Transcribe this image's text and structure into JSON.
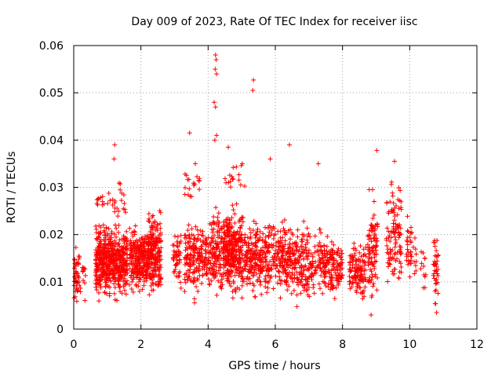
{
  "chart_data": {
    "type": "scatter",
    "title": "Day 009 of 2023, Rate Of TEC Index for receiver iisc",
    "xlabel": "GPS time / hours",
    "ylabel": "ROTI / TECUs",
    "xlim": [
      0,
      12
    ],
    "ylim": [
      0,
      0.06
    ],
    "x_ticks": [
      0,
      2,
      4,
      6,
      8,
      10,
      12
    ],
    "x_tick_labels": [
      "0",
      "2",
      "4",
      "6",
      "8",
      "10",
      "12"
    ],
    "y_ticks": [
      0,
      0.01,
      0.02,
      0.03,
      0.04,
      0.05,
      0.06
    ],
    "y_tick_labels": [
      "0",
      "0.01",
      "0.02",
      "0.03",
      "0.04",
      "0.05",
      "0.06"
    ],
    "grid": true,
    "marker": "plus",
    "color": "#ff0000",
    "series": [
      {
        "name": "ROTI",
        "notable_points": [
          {
            "x": 4.22,
            "y": 0.058
          },
          {
            "x": 4.24,
            "y": 0.057
          },
          {
            "x": 4.21,
            "y": 0.055
          },
          {
            "x": 4.25,
            "y": 0.054
          },
          {
            "x": 5.35,
            "y": 0.0527
          },
          {
            "x": 5.33,
            "y": 0.0505
          },
          {
            "x": 4.18,
            "y": 0.048
          },
          {
            "x": 4.22,
            "y": 0.047
          },
          {
            "x": 3.45,
            "y": 0.0415
          },
          {
            "x": 4.25,
            "y": 0.041
          },
          {
            "x": 4.2,
            "y": 0.04
          },
          {
            "x": 1.22,
            "y": 0.039
          },
          {
            "x": 6.42,
            "y": 0.039
          },
          {
            "x": 4.6,
            "y": 0.0385
          },
          {
            "x": 9.02,
            "y": 0.0378
          },
          {
            "x": 1.2,
            "y": 0.036
          },
          {
            "x": 5.85,
            "y": 0.036
          },
          {
            "x": 9.55,
            "y": 0.0355
          },
          {
            "x": 7.28,
            "y": 0.035
          },
          {
            "x": 3.62,
            "y": 0.035
          },
          {
            "x": 5.02,
            "y": 0.035
          },
          {
            "x": 10.8,
            "y": 0.0035
          },
          {
            "x": 8.85,
            "y": 0.003
          }
        ],
        "clusters": [
          {
            "x_range": [
              0.0,
              0.2
            ],
            "y_range": [
              0.004,
              0.018
            ],
            "count": 45
          },
          {
            "x_range": [
              0.25,
              0.35
            ],
            "y_range": [
              0.006,
              0.016
            ],
            "count": 12
          },
          {
            "x_range": [
              0.65,
              1.6
            ],
            "y_range": [
              0.005,
              0.024
            ],
            "count": 520
          },
          {
            "x_range": [
              0.65,
              1.0
            ],
            "y_range": [
              0.025,
              0.03
            ],
            "count": 10
          },
          {
            "x_range": [
              1.0,
              1.6
            ],
            "y_range": [
              0.022,
              0.034
            ],
            "count": 22
          },
          {
            "x_range": [
              1.65,
              2.2
            ],
            "y_range": [
              0.006,
              0.023
            ],
            "count": 230
          },
          {
            "x_range": [
              2.2,
              2.6
            ],
            "y_range": [
              0.005,
              0.027
            ],
            "count": 220
          },
          {
            "x_range": [
              2.95,
              3.2
            ],
            "y_range": [
              0.006,
              0.024
            ],
            "count": 50
          },
          {
            "x_range": [
              3.3,
              3.75
            ],
            "y_range": [
              0.004,
              0.026
            ],
            "count": 130
          },
          {
            "x_range": [
              3.3,
              3.75
            ],
            "y_range": [
              0.026,
              0.035
            ],
            "count": 18
          },
          {
            "x_range": [
              3.75,
              4.1
            ],
            "y_range": [
              0.006,
              0.024
            ],
            "count": 80
          },
          {
            "x_range": [
              4.1,
              4.45
            ],
            "y_range": [
              0.005,
              0.028
            ],
            "count": 120
          },
          {
            "x_range": [
              4.45,
              5.0
            ],
            "y_range": [
              0.005,
              0.028
            ],
            "count": 300
          },
          {
            "x_range": [
              4.5,
              5.1
            ],
            "y_range": [
              0.028,
              0.036
            ],
            "count": 16
          },
          {
            "x_range": [
              5.0,
              5.8
            ],
            "y_range": [
              0.005,
              0.025
            ],
            "count": 230
          },
          {
            "x_range": [
              5.8,
              6.3
            ],
            "y_range": [
              0.006,
              0.025
            ],
            "count": 130
          },
          {
            "x_range": [
              6.3,
              6.9
            ],
            "y_range": [
              0.004,
              0.024
            ],
            "count": 160
          },
          {
            "x_range": [
              6.9,
              7.4
            ],
            "y_range": [
              0.004,
              0.023
            ],
            "count": 100
          },
          {
            "x_range": [
              7.4,
              8.0
            ],
            "y_range": [
              0.005,
              0.022
            ],
            "count": 150
          },
          {
            "x_range": [
              8.2,
              8.7
            ],
            "y_range": [
              0.004,
              0.021
            ],
            "count": 130
          },
          {
            "x_range": [
              8.75,
              9.05
            ],
            "y_range": [
              0.003,
              0.03
            ],
            "count": 100
          },
          {
            "x_range": [
              9.3,
              9.75
            ],
            "y_range": [
              0.006,
              0.035
            ],
            "count": 110
          },
          {
            "x_range": [
              9.9,
              10.2
            ],
            "y_range": [
              0.007,
              0.027
            ],
            "count": 40
          },
          {
            "x_range": [
              10.3,
              10.5
            ],
            "y_range": [
              0.006,
              0.02
            ],
            "count": 12
          },
          {
            "x_range": [
              10.7,
              10.85
            ],
            "y_range": [
              0.003,
              0.023
            ],
            "count": 40
          }
        ]
      }
    ]
  }
}
